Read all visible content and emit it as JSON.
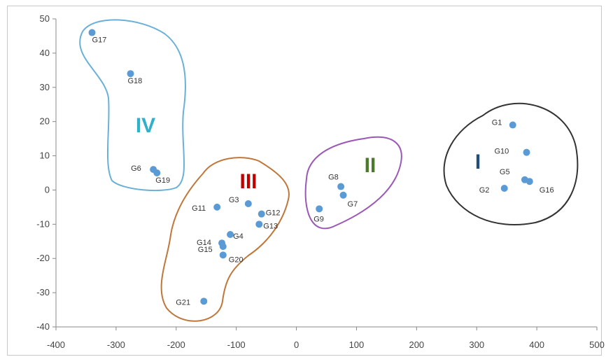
{
  "chart_data": {
    "type": "scatter",
    "xlim": [
      -400,
      500
    ],
    "ylim": [
      -40,
      50
    ],
    "x_ticks": [
      "-400",
      "-300",
      "-200",
      "-100",
      "0",
      "100",
      "200",
      "300",
      "400",
      "500"
    ],
    "y_ticks": [
      "50",
      "40",
      "30",
      "20",
      "10",
      "0",
      "-10",
      "-20",
      "-30",
      "-40"
    ],
    "grid": false,
    "marker_color": "#5b9bd5",
    "points": [
      {
        "label": "G1",
        "x": 360,
        "y": 19
      },
      {
        "label": "G2",
        "x": 346,
        "y": 0.5
      },
      {
        "label": "G3",
        "x": -80,
        "y": -4
      },
      {
        "label": "G4",
        "x": -110,
        "y": -13
      },
      {
        "label": "G5",
        "x": 380,
        "y": 3
      },
      {
        "label": "G6",
        "x": -238,
        "y": 6
      },
      {
        "label": "G7",
        "x": 78,
        "y": -1.5
      },
      {
        "label": "G8",
        "x": 74,
        "y": 1
      },
      {
        "label": "G9",
        "x": 38,
        "y": -5.5
      },
      {
        "label": "G10",
        "x": 383,
        "y": 11
      },
      {
        "label": "G11",
        "x": -132,
        "y": -5
      },
      {
        "label": "G12",
        "x": -58,
        "y": -7
      },
      {
        "label": "G13",
        "x": -62,
        "y": -10
      },
      {
        "label": "G14",
        "x": -124,
        "y": -15.5
      },
      {
        "label": "G15",
        "x": -122,
        "y": -16.5
      },
      {
        "label": "G16",
        "x": 388,
        "y": 2.5
      },
      {
        "label": "G17",
        "x": -340,
        "y": 46
      },
      {
        "label": "G18",
        "x": -276,
        "y": 34
      },
      {
        "label": "G19",
        "x": -232,
        "y": 5
      },
      {
        "label": "G20",
        "x": -122,
        "y": -19
      },
      {
        "label": "G21",
        "x": -154,
        "y": -32.5
      }
    ],
    "groups": [
      {
        "label": "I",
        "color": "#1f4e79",
        "outline": "#333333"
      },
      {
        "label": "II",
        "color": "#4a7a2a",
        "outline": "#9b59b6"
      },
      {
        "label": "III",
        "color": "#c00000",
        "outline": "#c0773a"
      },
      {
        "label": "IV",
        "color": "#31b0c9",
        "outline": "#6ab0d8"
      }
    ]
  }
}
